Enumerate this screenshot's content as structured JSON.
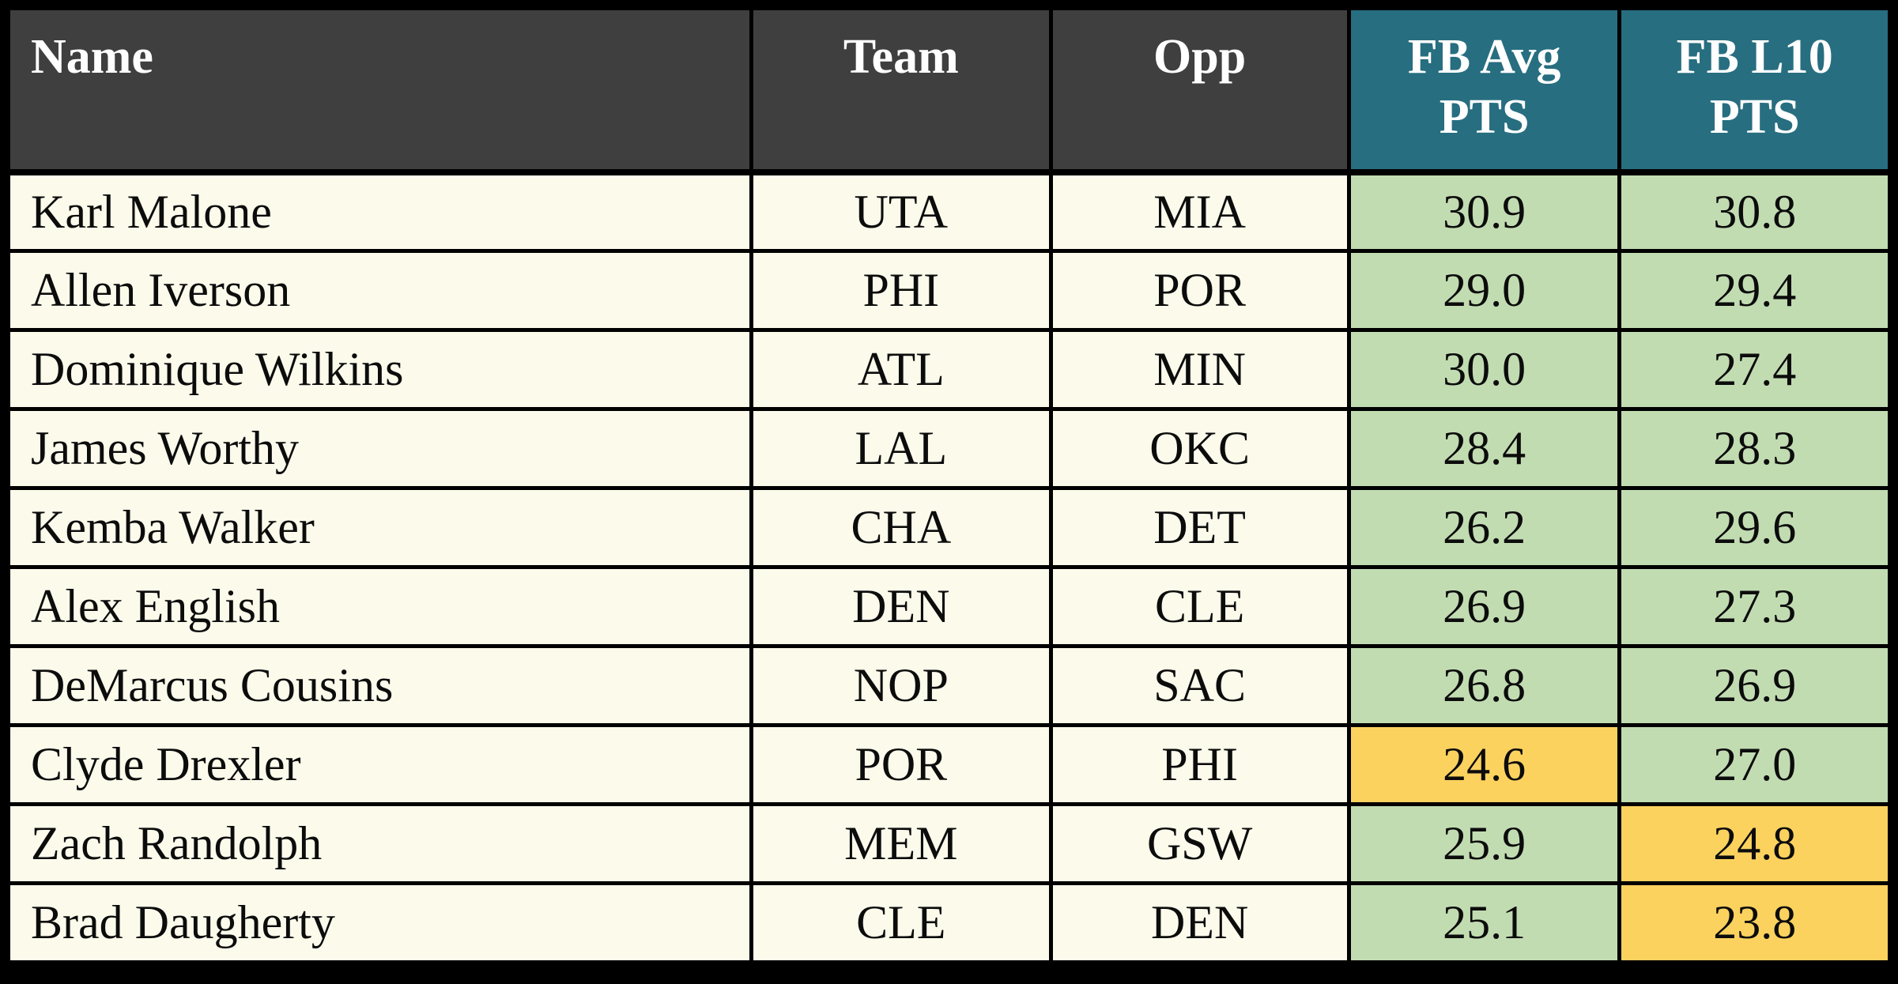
{
  "table_title": "fantasy-basketball-points-table",
  "colors": {
    "border": "#000000",
    "header_dark": "#3f3f3f",
    "header_teal": "#276e80",
    "cell_cream": "#fbfaeb",
    "cell_green": "#c2dcb2",
    "cell_yellow": "#fcd25f",
    "header_text": "#ffffff",
    "body_text": "#0c0c0c"
  },
  "header": {
    "name": "Name",
    "team": "Team",
    "opp": "Opp",
    "fb_avg_line1": "FB Avg",
    "fb_avg_line2": "PTS",
    "fb_l10_line1": "FB L10",
    "fb_l10_line2": "PTS"
  },
  "rows": [
    {
      "name": "Karl Malone",
      "team": "UTA",
      "opp": "MIA",
      "fb_avg": "30.9",
      "fb_avg_color": "green",
      "fb_l10": "30.8",
      "fb_l10_color": "green"
    },
    {
      "name": "Allen Iverson",
      "team": "PHI",
      "opp": "POR",
      "fb_avg": "29.0",
      "fb_avg_color": "green",
      "fb_l10": "29.4",
      "fb_l10_color": "green"
    },
    {
      "name": "Dominique Wilkins",
      "team": "ATL",
      "opp": "MIN",
      "fb_avg": "30.0",
      "fb_avg_color": "green",
      "fb_l10": "27.4",
      "fb_l10_color": "green"
    },
    {
      "name": "James Worthy",
      "team": "LAL",
      "opp": "OKC",
      "fb_avg": "28.4",
      "fb_avg_color": "green",
      "fb_l10": "28.3",
      "fb_l10_color": "green"
    },
    {
      "name": "Kemba Walker",
      "team": "CHA",
      "opp": "DET",
      "fb_avg": "26.2",
      "fb_avg_color": "green",
      "fb_l10": "29.6",
      "fb_l10_color": "green"
    },
    {
      "name": "Alex English",
      "team": "DEN",
      "opp": "CLE",
      "fb_avg": "26.9",
      "fb_avg_color": "green",
      "fb_l10": "27.3",
      "fb_l10_color": "green"
    },
    {
      "name": "DeMarcus Cousins",
      "team": "NOP",
      "opp": "SAC",
      "fb_avg": "26.8",
      "fb_avg_color": "green",
      "fb_l10": "26.9",
      "fb_l10_color": "green"
    },
    {
      "name": "Clyde Drexler",
      "team": "POR",
      "opp": "PHI",
      "fb_avg": "24.6",
      "fb_avg_color": "yellow",
      "fb_l10": "27.0",
      "fb_l10_color": "green"
    },
    {
      "name": "Zach Randolph",
      "team": "MEM",
      "opp": "GSW",
      "fb_avg": "25.9",
      "fb_avg_color": "green",
      "fb_l10": "24.8",
      "fb_l10_color": "yellow"
    },
    {
      "name": "Brad Daugherty",
      "team": "CLE",
      "opp": "DEN",
      "fb_avg": "25.1",
      "fb_avg_color": "green",
      "fb_l10": "23.8",
      "fb_l10_color": "yellow"
    }
  ]
}
